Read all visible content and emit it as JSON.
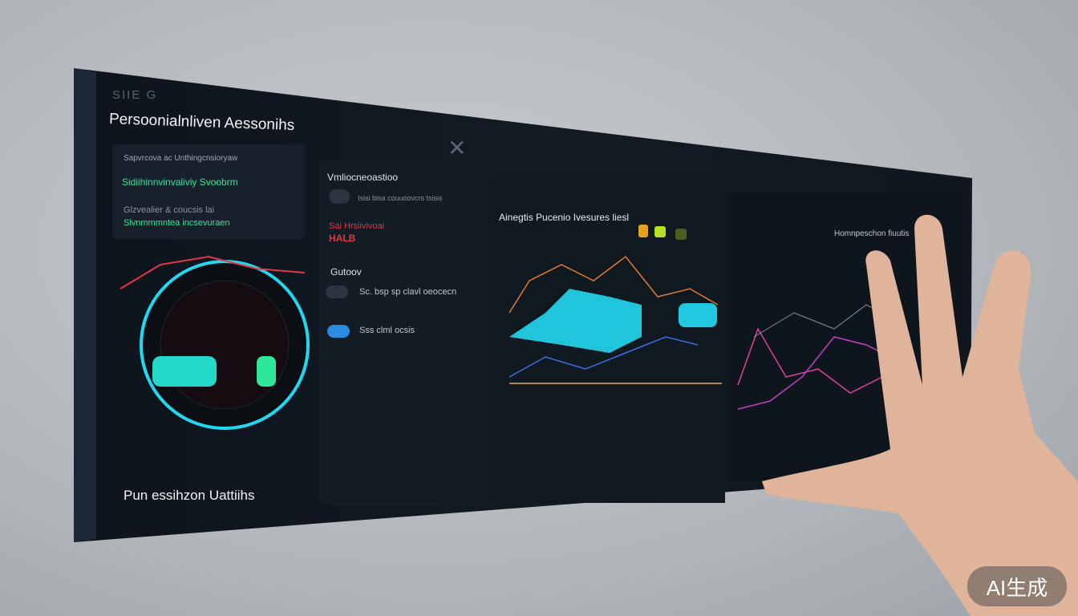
{
  "panel": {
    "logo_text": "SIIE G",
    "title": "Persoonialnliven Aessonihs",
    "footer": "Pun essihzon Uattiihs",
    "close_icon": "close-icon"
  },
  "left_card": {
    "line1": "Sapvrcova ac Unthingcnsioryaw",
    "line2": "Sidiihinnvinvaliviy Svoobrm",
    "line3": "Glzvealier & coucsis lai",
    "line4": "Slvnmmmntea incsevuraen"
  },
  "middle_column": {
    "card1_title": "Vmliocneoastioo",
    "card1_sub": "Isisi bisa couuoovcrs tsisis",
    "alert_text": "Sai Hrsiivivoai",
    "alert_code": "HALB",
    "section_title": "Gutoov",
    "item1": "Sc. bsp sp clavl oeocecn",
    "item2": "Sss clml ocsis"
  },
  "chart_panel": {
    "title": "Ainegtis Pucenio Ivesures liesl"
  },
  "right_panel": {
    "label": "Homnpeschon fiuutis"
  },
  "colors": {
    "accent_cyan": "#22d8f0",
    "accent_green": "#2ee89a",
    "accent_red": "#e0384a",
    "accent_orange": "#e07a30",
    "accent_pink": "#e0409a"
  },
  "watermark": "AI生成"
}
